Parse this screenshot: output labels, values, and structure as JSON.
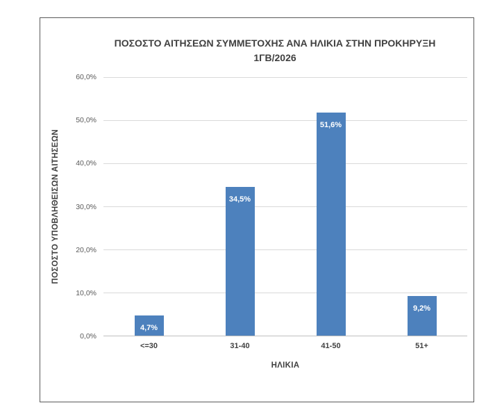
{
  "chart_data": {
    "type": "bar",
    "title": "ΠΟΣΟΣΤΟ ΑΙΤΗΣΕΩΝ ΣΥΜΜΕΤΟΧΗΣ ΑΝΑ ΗΛΙΚΙΑ ΣΤΗΝ ΠΡΟΚΗΡΥΞΗ 1ΓΒ/2026",
    "categories": [
      "<=30",
      "31-40",
      "41-50",
      "51+"
    ],
    "values": [
      4.7,
      34.5,
      51.6,
      9.2
    ],
    "value_labels": [
      "4,7%",
      "34,5%",
      "51,6%",
      "9,2%"
    ],
    "xlabel": "ΗΛΙΚΙΑ",
    "ylabel": "ΠΟΣΟΣΤΟ ΥΠΟΒΛΗΘΕΙΣΩΝ ΑΙΤΗΣΕΩΝ",
    "ylim": [
      0,
      60
    ],
    "ytick_labels": [
      "0,0%",
      "10,0%",
      "20,0%",
      "30,0%",
      "40,0%",
      "50,0%",
      "60,0%"
    ],
    "grid": true,
    "legend": false,
    "bar_color": "#4d81bd",
    "data_label_color": "#ffffff",
    "gridline_color": "#d9d9d9",
    "axis_line_color": "#bfbfbf",
    "text_color": "#404040",
    "tick_text_color": "#595959"
  }
}
